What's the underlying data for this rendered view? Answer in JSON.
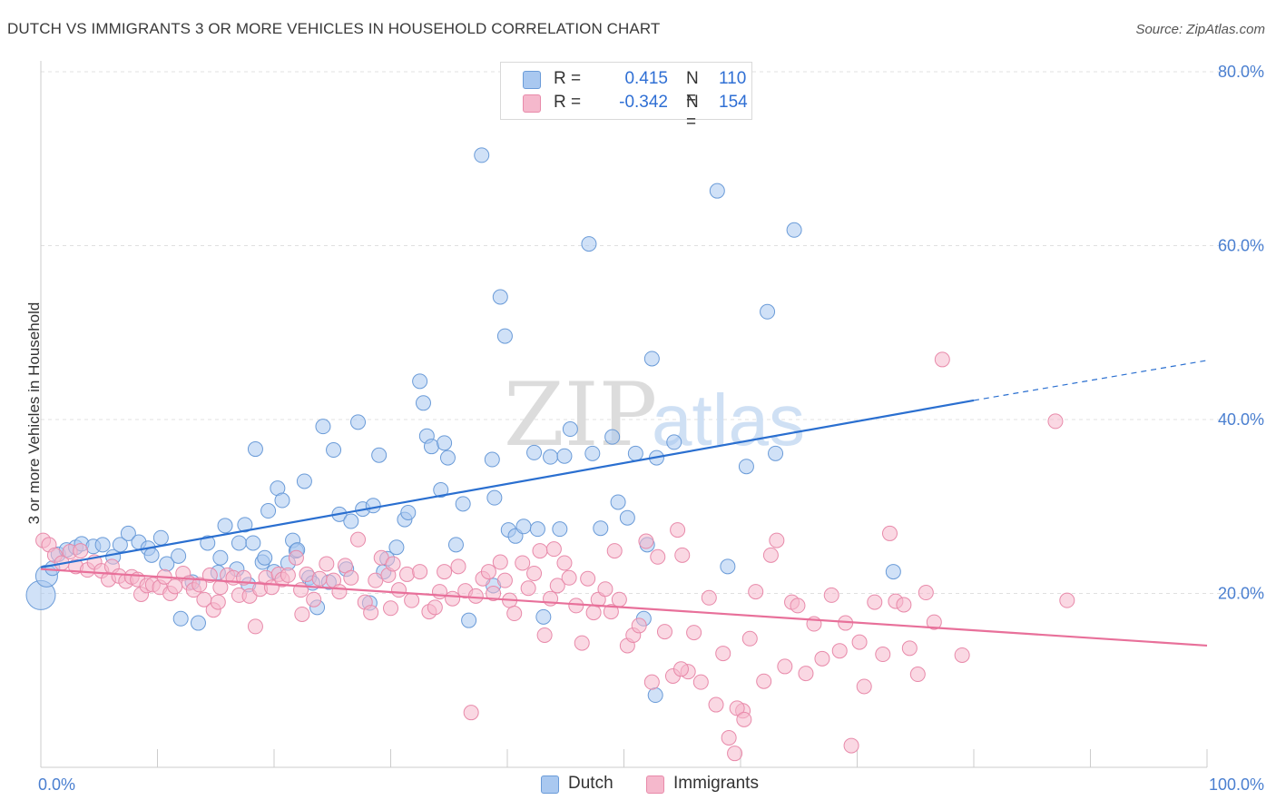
{
  "title": "DUTCH VS IMMIGRANTS 3 OR MORE VEHICLES IN HOUSEHOLD CORRELATION CHART",
  "source": "Source: ZipAtlas.com",
  "watermark": {
    "zip": "ZIP",
    "atlas": "atlas"
  },
  "legend": {
    "rows": [
      {
        "r_label": "R =",
        "r_value": "0.415",
        "n_label": "N =",
        "n_value": "110"
      },
      {
        "r_label": "R =",
        "r_value": "-0.342",
        "n_label": "N =",
        "n_value": "154"
      }
    ]
  },
  "colors": {
    "dutch_fill": "#a9c8f0",
    "dutch_stroke": "#6a9bd8",
    "dutch_line": "#2a6fd0",
    "imm_fill": "#f5b8cc",
    "imm_stroke": "#e88aaa",
    "imm_line": "#e8709a",
    "axis_text": "#4a7fd0",
    "grid": "#e0e0e0"
  },
  "chart_data": {
    "type": "scatter",
    "title": "DUTCH VS IMMIGRANTS 3 OR MORE VEHICLES IN HOUSEHOLD CORRELATION CHART",
    "xlabel": "",
    "ylabel": "3 or more Vehicles in Household",
    "xlim": [
      0,
      100
    ],
    "ylim": [
      0,
      80
    ],
    "x_tick_labels": [
      "0.0%",
      "100.0%"
    ],
    "y_ticks": [
      20,
      40,
      60,
      80
    ],
    "y_tick_labels": [
      "20.0%",
      "40.0%",
      "60.0%",
      "80.0%"
    ],
    "grid": true,
    "legend_position": "top-center",
    "series": [
      {
        "name": "Dutch",
        "r": 0.415,
        "n": 110,
        "trend": {
          "x": [
            0,
            80
          ],
          "y": [
            23.0,
            42.2
          ],
          "dashed_to": [
            100,
            46.8
          ]
        },
        "points": [
          [
            0,
            19.8
          ],
          [
            0.5,
            22.0
          ],
          [
            1,
            22.9
          ],
          [
            1.5,
            24.5
          ],
          [
            2.2,
            25.0
          ],
          [
            3,
            25.3
          ],
          [
            3.5,
            25.7
          ],
          [
            4.5,
            25.4
          ],
          [
            5.3,
            25.6
          ],
          [
            6.2,
            24.2
          ],
          [
            6.8,
            25.6
          ],
          [
            7.5,
            26.9
          ],
          [
            8.4,
            25.9
          ],
          [
            9.2,
            25.2
          ],
          [
            9.5,
            24.4
          ],
          [
            10.3,
            26.4
          ],
          [
            10.8,
            23.4
          ],
          [
            11.8,
            24.3
          ],
          [
            12,
            17.1
          ],
          [
            13,
            21.3
          ],
          [
            13.5,
            16.6
          ],
          [
            14.3,
            25.8
          ],
          [
            15.2,
            22.4
          ],
          [
            15.4,
            24.1
          ],
          [
            15.8,
            27.8
          ],
          [
            16.8,
            22.8
          ],
          [
            17,
            25.8
          ],
          [
            17.5,
            27.9
          ],
          [
            17.8,
            21.0
          ],
          [
            18.2,
            25.8
          ],
          [
            18.4,
            36.6
          ],
          [
            19,
            23.6
          ],
          [
            19.2,
            24.1
          ],
          [
            19.5,
            29.5
          ],
          [
            20,
            22.5
          ],
          [
            20.3,
            32.1
          ],
          [
            20.7,
            30.7
          ],
          [
            21.2,
            23.5
          ],
          [
            21.6,
            26.1
          ],
          [
            21.9,
            24.9
          ],
          [
            22,
            25.0
          ],
          [
            22.6,
            32.9
          ],
          [
            23,
            21.8
          ],
          [
            23.3,
            21.2
          ],
          [
            23.7,
            18.4
          ],
          [
            24.2,
            39.2
          ],
          [
            24.7,
            21.3
          ],
          [
            25.1,
            36.5
          ],
          [
            25.6,
            29.1
          ],
          [
            26.2,
            22.8
          ],
          [
            26.6,
            28.3
          ],
          [
            27.2,
            39.7
          ],
          [
            27.6,
            29.7
          ],
          [
            28.2,
            18.9
          ],
          [
            28.5,
            30.1
          ],
          [
            29,
            35.9
          ],
          [
            29.4,
            22.5
          ],
          [
            29.7,
            24.0
          ],
          [
            30.5,
            25.3
          ],
          [
            31.2,
            28.5
          ],
          [
            31.5,
            29.3
          ],
          [
            32.5,
            44.4
          ],
          [
            32.8,
            41.9
          ],
          [
            33.1,
            38.1
          ],
          [
            33.5,
            36.9
          ],
          [
            34.3,
            31.9
          ],
          [
            34.6,
            37.3
          ],
          [
            34.9,
            35.6
          ],
          [
            35.6,
            25.6
          ],
          [
            36.2,
            30.3
          ],
          [
            36.7,
            16.9
          ],
          [
            37.8,
            70.4
          ],
          [
            38.7,
            35.4
          ],
          [
            38.8,
            20.9
          ],
          [
            38.9,
            31.0
          ],
          [
            39.4,
            54.1
          ],
          [
            39.8,
            49.6
          ],
          [
            40.1,
            27.3
          ],
          [
            40.7,
            26.6
          ],
          [
            41.4,
            27.7
          ],
          [
            42.3,
            36.2
          ],
          [
            42.6,
            27.4
          ],
          [
            43.1,
            17.3
          ],
          [
            43.7,
            35.7
          ],
          [
            44.5,
            27.4
          ],
          [
            44.9,
            35.8
          ],
          [
            45.4,
            38.9
          ],
          [
            47,
            60.2
          ],
          [
            47.3,
            36.1
          ],
          [
            48,
            27.5
          ],
          [
            49,
            38.0
          ],
          [
            49.5,
            30.5
          ],
          [
            50.3,
            28.7
          ],
          [
            51,
            36.1
          ],
          [
            51.7,
            17.1
          ],
          [
            52,
            25.6
          ],
          [
            52.8,
            35.6
          ],
          [
            52.4,
            47.0
          ],
          [
            52.7,
            8.3
          ],
          [
            54.3,
            37.4
          ],
          [
            58,
            66.3
          ],
          [
            58.9,
            23.1
          ],
          [
            60.5,
            34.6
          ],
          [
            62.3,
            52.4
          ],
          [
            63,
            36.1
          ],
          [
            64.6,
            61.8
          ],
          [
            73.1,
            22.5
          ]
        ]
      },
      {
        "name": "Immigrants",
        "r": -0.342,
        "n": 154,
        "trend": {
          "x": [
            0,
            100
          ],
          "y": [
            22.8,
            14.0
          ]
        },
        "points": [
          [
            0.2,
            26.1
          ],
          [
            0.7,
            25.6
          ],
          [
            1.2,
            24.4
          ],
          [
            1.8,
            23.5
          ],
          [
            2.5,
            24.8
          ],
          [
            3,
            23.1
          ],
          [
            3.4,
            24.9
          ],
          [
            4,
            22.7
          ],
          [
            4.6,
            23.6
          ],
          [
            5.2,
            22.6
          ],
          [
            5.8,
            21.6
          ],
          [
            6.1,
            23.1
          ],
          [
            6.7,
            22.0
          ],
          [
            7.3,
            21.4
          ],
          [
            7.8,
            21.9
          ],
          [
            8.3,
            21.6
          ],
          [
            8.6,
            19.9
          ],
          [
            9.1,
            20.9
          ],
          [
            9.6,
            21.0
          ],
          [
            10.2,
            20.7
          ],
          [
            10.6,
            21.9
          ],
          [
            11.1,
            20.0
          ],
          [
            11.5,
            20.8
          ],
          [
            12.2,
            22.3
          ],
          [
            12.7,
            21.2
          ],
          [
            13.1,
            20.4
          ],
          [
            13.6,
            21.0
          ],
          [
            14,
            19.3
          ],
          [
            14.5,
            22.1
          ],
          [
            14.8,
            18.1
          ],
          [
            15.4,
            20.7
          ],
          [
            16,
            22.1
          ],
          [
            16.5,
            21.8
          ],
          [
            17,
            19.8
          ],
          [
            17.4,
            21.8
          ],
          [
            17.9,
            19.7
          ],
          [
            18.4,
            16.2
          ],
          [
            18.8,
            20.5
          ],
          [
            19.3,
            21.8
          ],
          [
            19.8,
            20.7
          ],
          [
            20.4,
            22.2
          ],
          [
            20.7,
            21.6
          ],
          [
            21.2,
            22.1
          ],
          [
            21.9,
            24.1
          ],
          [
            22.3,
            20.4
          ],
          [
            22.8,
            22.2
          ],
          [
            23.4,
            19.3
          ],
          [
            23.9,
            21.7
          ],
          [
            24.5,
            23.4
          ],
          [
            25.1,
            21.5
          ],
          [
            25.6,
            20.2
          ],
          [
            26.1,
            23.2
          ],
          [
            26.6,
            21.8
          ],
          [
            27.2,
            26.2
          ],
          [
            27.8,
            19.0
          ],
          [
            28.3,
            17.8
          ],
          [
            28.7,
            21.5
          ],
          [
            29.2,
            24.1
          ],
          [
            29.8,
            22.1
          ],
          [
            30.2,
            23.4
          ],
          [
            30.7,
            20.4
          ],
          [
            31.4,
            22.2
          ],
          [
            31.8,
            19.2
          ],
          [
            32.5,
            22.5
          ],
          [
            33.3,
            17.9
          ],
          [
            33.8,
            18.4
          ],
          [
            34.2,
            20.2
          ],
          [
            34.6,
            22.5
          ],
          [
            35.3,
            19.4
          ],
          [
            35.8,
            23.1
          ],
          [
            36.4,
            20.3
          ],
          [
            36.9,
            6.3
          ],
          [
            37.3,
            19.7
          ],
          [
            37.9,
            21.7
          ],
          [
            38.4,
            22.5
          ],
          [
            38.8,
            20.0
          ],
          [
            39.4,
            23.6
          ],
          [
            39.8,
            21.5
          ],
          [
            40.2,
            19.2
          ],
          [
            40.6,
            17.7
          ],
          [
            41.3,
            23.5
          ],
          [
            41.8,
            20.6
          ],
          [
            42.3,
            22.3
          ],
          [
            42.8,
            24.9
          ],
          [
            43.2,
            15.2
          ],
          [
            43.7,
            19.4
          ],
          [
            44.3,
            20.9
          ],
          [
            44.9,
            23.5
          ],
          [
            45.3,
            21.8
          ],
          [
            45.9,
            18.6
          ],
          [
            46.4,
            14.3
          ],
          [
            46.9,
            21.7
          ],
          [
            47.4,
            17.8
          ],
          [
            47.8,
            19.3
          ],
          [
            48.4,
            20.5
          ],
          [
            48.9,
            17.9
          ],
          [
            49.2,
            24.9
          ],
          [
            49.6,
            19.3
          ],
          [
            50.3,
            14.0
          ],
          [
            50.8,
            15.2
          ],
          [
            51.3,
            16.3
          ],
          [
            51.9,
            26.0
          ],
          [
            52.4,
            9.8
          ],
          [
            52.9,
            24.2
          ],
          [
            53.5,
            15.6
          ],
          [
            54.2,
            10.5
          ],
          [
            54.6,
            27.3
          ],
          [
            55,
            24.4
          ],
          [
            55.5,
            11.0
          ],
          [
            56,
            15.5
          ],
          [
            56.6,
            9.8
          ],
          [
            57.3,
            19.5
          ],
          [
            57.9,
            7.2
          ],
          [
            58.5,
            13.1
          ],
          [
            59,
            3.4
          ],
          [
            59.5,
            1.6
          ],
          [
            60.2,
            6.5
          ],
          [
            60.8,
            14.8
          ],
          [
            61.3,
            20.2
          ],
          [
            62,
            9.9
          ],
          [
            62.6,
            24.4
          ],
          [
            63.1,
            26.1
          ],
          [
            63.8,
            11.6
          ],
          [
            64.4,
            19.0
          ],
          [
            64.9,
            18.6
          ],
          [
            65.6,
            10.8
          ],
          [
            66.3,
            16.5
          ],
          [
            67,
            12.5
          ],
          [
            67.8,
            19.8
          ],
          [
            68.5,
            13.4
          ],
          [
            69,
            16.6
          ],
          [
            69.5,
            2.5
          ],
          [
            70.2,
            14.4
          ],
          [
            70.6,
            9.3
          ],
          [
            71.5,
            19.0
          ],
          [
            72.2,
            13.0
          ],
          [
            72.8,
            26.9
          ],
          [
            73.3,
            19.1
          ],
          [
            74,
            18.7
          ],
          [
            74.5,
            13.7
          ],
          [
            75.2,
            10.7
          ],
          [
            75.9,
            20.1
          ],
          [
            76.6,
            16.7
          ],
          [
            77.3,
            46.9
          ],
          [
            79,
            12.9
          ],
          [
            87,
            39.8
          ],
          [
            88,
            19.2
          ],
          [
            59.7,
            6.8
          ],
          [
            60.3,
            5.5
          ],
          [
            30,
            18.3
          ],
          [
            15.2,
            19.0
          ],
          [
            22.4,
            17.6
          ],
          [
            44,
            25.1
          ],
          [
            54.9,
            11.3
          ]
        ]
      }
    ]
  },
  "bottom_legend": {
    "dutch": "Dutch",
    "immigrants": "Immigrants"
  }
}
